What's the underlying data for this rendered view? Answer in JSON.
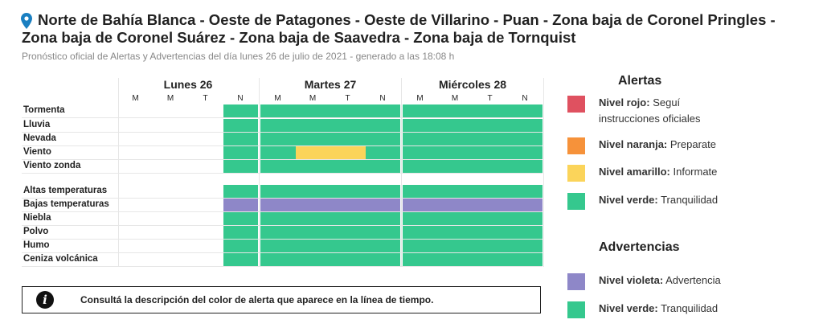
{
  "header": {
    "title": "Norte de Bahía Blanca - Oeste de Patagones - Oeste de Villarino - Puan - Zona baja de Coronel Pringles - Zona baja de Coronel Suárez - Zona baja de Saavedra - Zona baja de Tornquist",
    "subtitle": "Pronóstico oficial de Alertas y Advertencias del día lunes 26 de julio de 2021 - generado a las 18:08 h"
  },
  "colors": {
    "green": "#35c88e",
    "violet": "#8e87c8",
    "yellow": "#fbd45a",
    "red": "#df5160",
    "orange": "#f6923a"
  },
  "timeline": {
    "days": [
      {
        "label": "Lunes 26",
        "periods": [
          "M",
          "M",
          "T",
          "N"
        ]
      },
      {
        "label": "Martes 27",
        "periods": [
          "M",
          "M",
          "T",
          "N"
        ]
      },
      {
        "label": "Miércoles 28",
        "periods": [
          "M",
          "M",
          "T",
          "N"
        ]
      }
    ],
    "rows": [
      {
        "label": "Tormenta",
        "cells": [
          "",
          "",
          "",
          "green",
          "green",
          "green",
          "green",
          "green",
          "green",
          "green",
          "green",
          "green"
        ]
      },
      {
        "label": "Lluvia",
        "cells": [
          "",
          "",
          "",
          "green",
          "green",
          "green",
          "green",
          "green",
          "green",
          "green",
          "green",
          "green"
        ]
      },
      {
        "label": "Nevada",
        "cells": [
          "",
          "",
          "",
          "green",
          "green",
          "green",
          "green",
          "green",
          "green",
          "green",
          "green",
          "green"
        ]
      },
      {
        "label": "Viento",
        "cells": [
          "",
          "",
          "",
          "green",
          "green",
          "yellow",
          "yellow",
          "green",
          "green",
          "green",
          "green",
          "green"
        ]
      },
      {
        "label": "Viento zonda",
        "cells": [
          "",
          "",
          "",
          "green",
          "green",
          "green",
          "green",
          "green",
          "green",
          "green",
          "green",
          "green"
        ]
      },
      {
        "label": "Altas temperaturas",
        "cells": [
          "",
          "",
          "",
          "green",
          "green",
          "green",
          "green",
          "green",
          "green",
          "green",
          "green",
          "green"
        ]
      },
      {
        "label": "Bajas temperaturas",
        "cells": [
          "",
          "",
          "",
          "violet",
          "violet",
          "violet",
          "violet",
          "violet",
          "violet",
          "violet",
          "violet",
          "violet"
        ]
      },
      {
        "label": "Niebla",
        "cells": [
          "",
          "",
          "",
          "green",
          "green",
          "green",
          "green",
          "green",
          "green",
          "green",
          "green",
          "green"
        ]
      },
      {
        "label": "Polvo",
        "cells": [
          "",
          "",
          "",
          "green",
          "green",
          "green",
          "green",
          "green",
          "green",
          "green",
          "green",
          "green"
        ]
      },
      {
        "label": "Humo",
        "cells": [
          "",
          "",
          "",
          "green",
          "green",
          "green",
          "green",
          "green",
          "green",
          "green",
          "green",
          "green"
        ]
      },
      {
        "label": "Ceniza volcánica",
        "cells": [
          "",
          "",
          "",
          "green",
          "green",
          "green",
          "green",
          "green",
          "green",
          "green",
          "green",
          "green"
        ]
      }
    ]
  },
  "info": {
    "text": "Consultá la descripción del color de alerta que aparece en la línea de tiempo.",
    "icon": "info-icon"
  },
  "legend": {
    "alertas_title": "Alertas",
    "alertas": [
      {
        "name": "Nivel rojo:",
        "desc": "Seguí instrucciones oficiales",
        "color": "red"
      },
      {
        "name": "Nivel naranja:",
        "desc": "Preparate",
        "color": "orange"
      },
      {
        "name": "Nivel amarillo:",
        "desc": "Informate",
        "color": "yellow"
      },
      {
        "name": "Nivel verde:",
        "desc": "Tranquilidad",
        "color": "green"
      }
    ],
    "advertencias_title": "Advertencias",
    "advertencias": [
      {
        "name": "Nivel violeta:",
        "desc": "Advertencia",
        "color": "violet"
      },
      {
        "name": "Nivel verde:",
        "desc": "Tranquilidad",
        "color": "green"
      }
    ]
  }
}
